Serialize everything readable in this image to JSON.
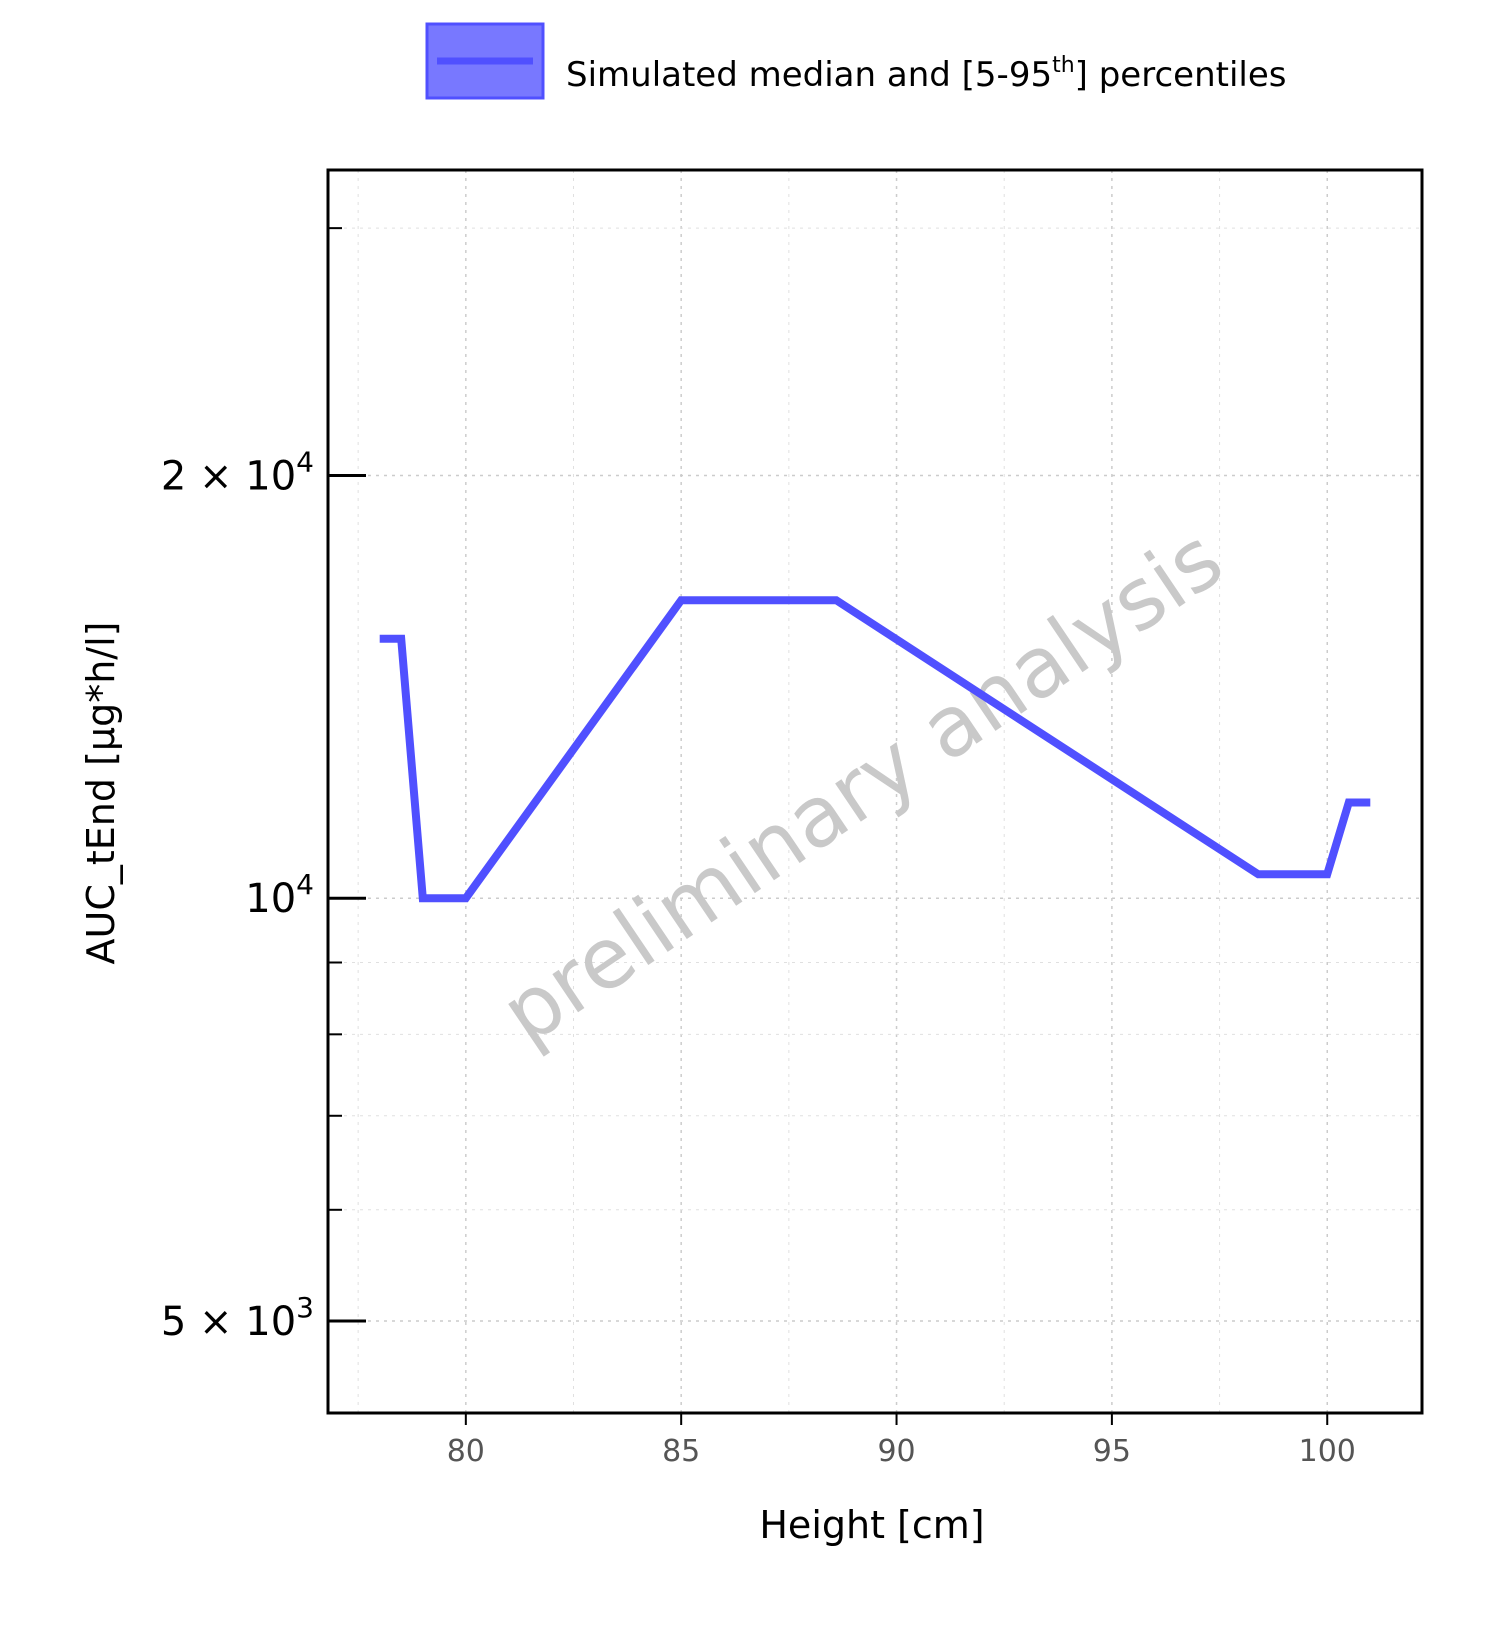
{
  "chart_data": {
    "type": "line",
    "xlabel": "Height [cm]",
    "ylabel": "AUC_tEnd [µg*h/l]",
    "y_scale": "log",
    "xlim": [
      76.8,
      102.2
    ],
    "ylim": [
      4300,
      33000
    ],
    "x_ticks": [
      80,
      85,
      90,
      95,
      100
    ],
    "x_tick_labels": [
      "80",
      "85",
      "90",
      "95",
      "100"
    ],
    "y_ticks": [
      {
        "value": 5000,
        "mantissa": "5",
        "times": "×",
        "base": "10",
        "exponent": "3"
      },
      {
        "value": 10000,
        "mantissa": "",
        "times": "",
        "base": "10",
        "exponent": "4"
      },
      {
        "value": 20000,
        "mantissa": "2",
        "times": "×",
        "base": "10",
        "exponent": "4"
      }
    ],
    "y_minor_ticks": [
      6000,
      7000,
      8000,
      9000,
      30000
    ],
    "grid": true,
    "legend": {
      "position": "top",
      "label_main": "Simulated median and [5-95",
      "label_sup": "th",
      "label_end": "] percentiles"
    },
    "series": [
      {
        "name": "Simulated median and [5-95th] percentiles",
        "color": "#5050ff",
        "x": [
          78.0,
          78.5,
          79.0,
          80.0,
          85.0,
          88.6,
          98.4,
          100.0,
          100.5,
          101.0
        ],
        "y": [
          15300,
          15300,
          10000,
          10000,
          16300,
          16300,
          10400,
          10400,
          11700,
          11700
        ]
      }
    ]
  },
  "watermark": "preliminary analysis",
  "colors": {
    "line": "#5050ff",
    "legend_fill": "#7878ff",
    "grid": "#cccccc",
    "axis": "#000000",
    "watermark": "#c9c9c9"
  }
}
